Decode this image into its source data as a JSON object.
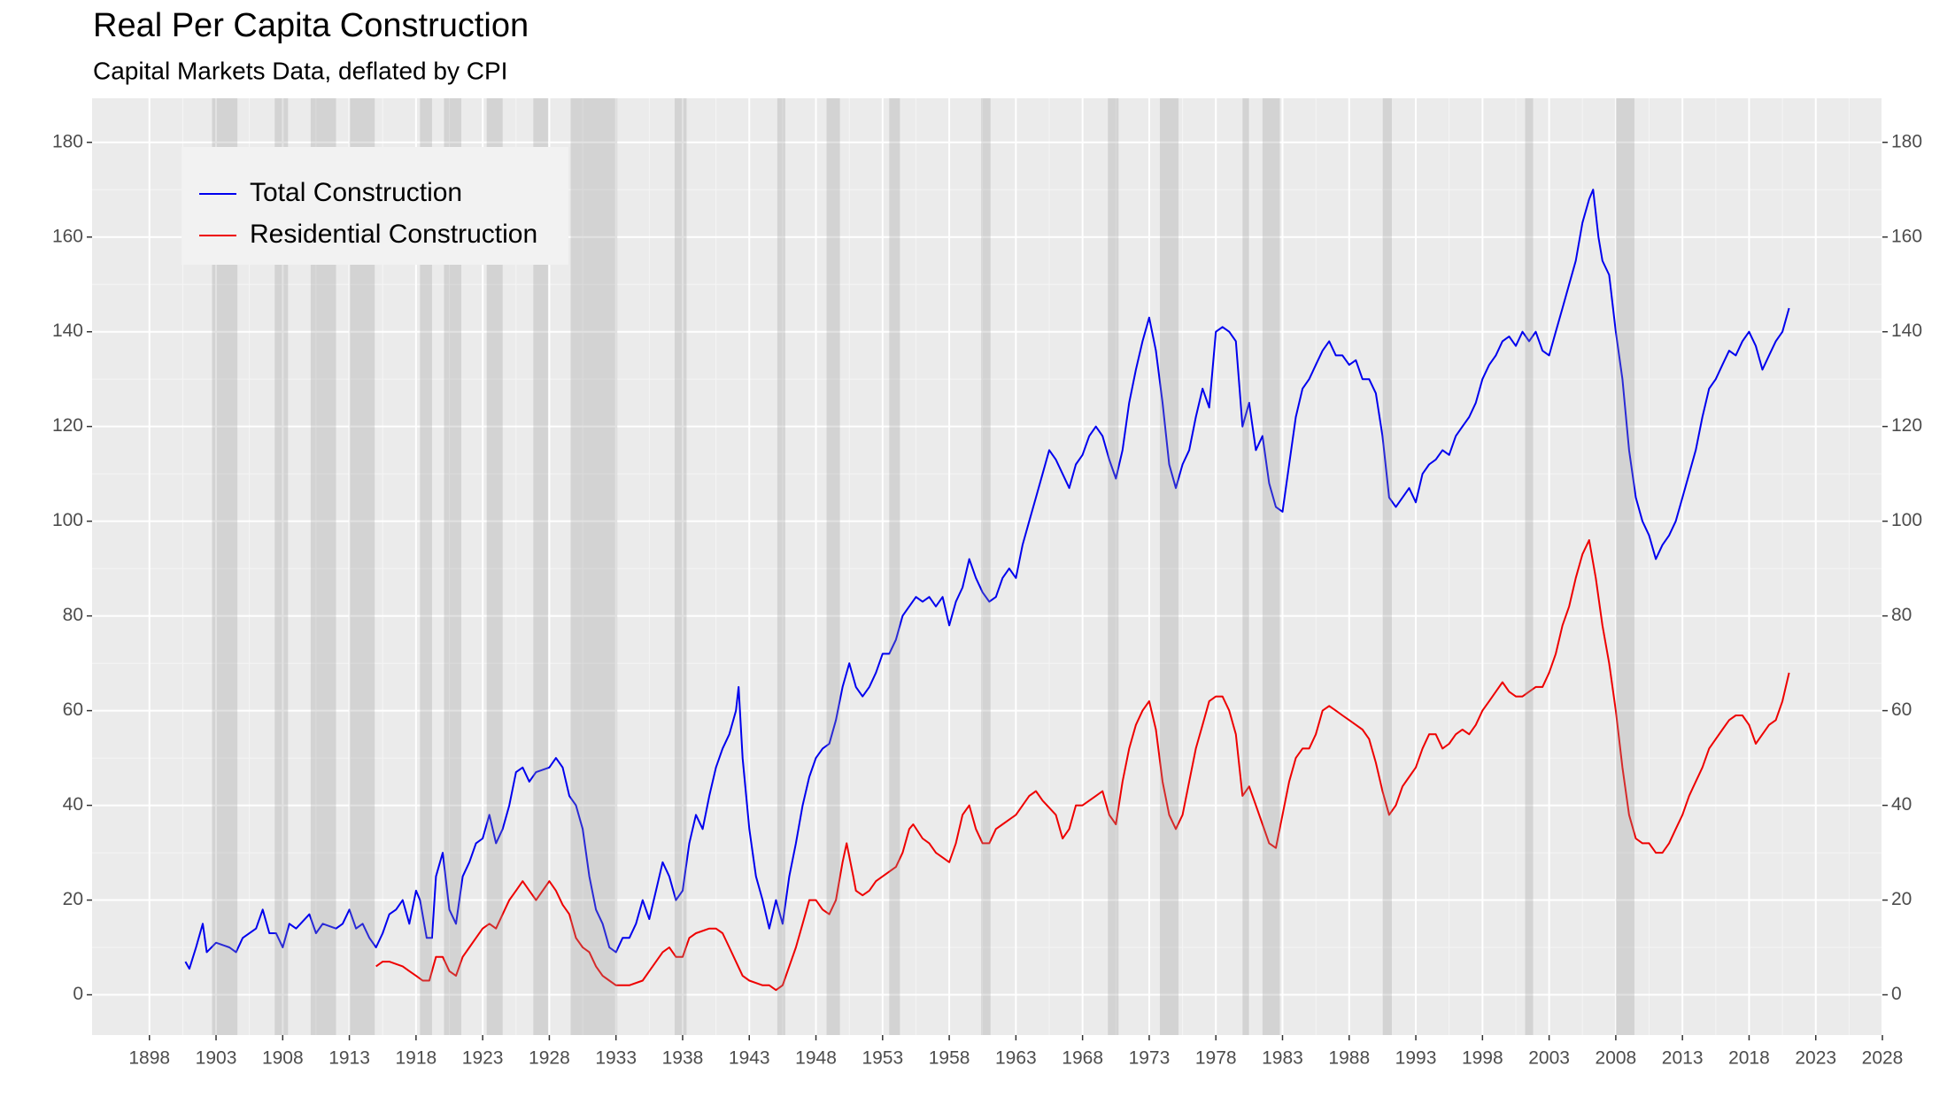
{
  "chart_data": {
    "type": "line",
    "title": "Real Per Capita Construction",
    "subtitle": "Capital Markets Data, deflated by CPI",
    "xlim": [
      1893.7,
      2028
    ],
    "xticks": [
      1898,
      1903,
      1908,
      1913,
      1918,
      1923,
      1928,
      1933,
      1938,
      1943,
      1948,
      1953,
      1958,
      1963,
      1968,
      1973,
      1978,
      1983,
      1988,
      1993,
      1998,
      2003,
      2008,
      2013,
      2018,
      2023,
      2028
    ],
    "ylim": [
      -8.5,
      189.3
    ],
    "yticks": [
      0,
      20,
      40,
      60,
      80,
      100,
      120,
      140,
      160,
      180
    ],
    "y2lim": [
      -8.5,
      189.3
    ],
    "y2ticks": [
      0,
      20,
      40,
      60,
      80,
      100,
      120,
      140,
      160,
      180
    ],
    "grid": true,
    "legend": "top-left",
    "recessions": [
      [
        1902.7,
        1904.6
      ],
      [
        1907.4,
        1908.4
      ],
      [
        1910.1,
        1912.0
      ],
      [
        1913.0,
        1914.9
      ],
      [
        1918.3,
        1919.2
      ],
      [
        1920.1,
        1921.4
      ],
      [
        1923.3,
        1924.5
      ],
      [
        1926.8,
        1927.9
      ],
      [
        1929.6,
        1933.1
      ],
      [
        1937.4,
        1938.3
      ],
      [
        1945.1,
        1945.7
      ],
      [
        1948.8,
        1949.8
      ],
      [
        1953.5,
        1954.3
      ],
      [
        1960.4,
        1961.1
      ],
      [
        1969.9,
        1970.7
      ],
      [
        1973.8,
        1975.2
      ],
      [
        1980.0,
        1980.5
      ],
      [
        1981.5,
        1982.8
      ],
      [
        1990.5,
        1991.2
      ],
      [
        2001.2,
        2001.8
      ],
      [
        2008.0,
        2009.4
      ]
    ],
    "series": [
      {
        "name": "Total Construction",
        "color": "#0000ee",
        "x": [
          1900.7,
          1901,
          1901.5,
          1902,
          1902.3,
          1903,
          1904,
          1904.5,
          1905,
          1906,
          1906.5,
          1907,
          1907.5,
          1908,
          1908.5,
          1909,
          1910,
          1910.5,
          1911,
          1912,
          1912.5,
          1913,
          1913.5,
          1914,
          1914.5,
          1915,
          1915.5,
          1916,
          1916.5,
          1917,
          1917.5,
          1918,
          1918.3,
          1918.8,
          1919.2,
          1919.5,
          1920,
          1920.5,
          1921,
          1921.5,
          1922,
          1922.5,
          1923,
          1923.5,
          1924,
          1924.5,
          1925,
          1925.5,
          1926,
          1926.5,
          1927,
          1928,
          1928.5,
          1929,
          1929.5,
          1930,
          1930.5,
          1931,
          1931.5,
          1932,
          1932.5,
          1933,
          1933.5,
          1934,
          1934.5,
          1935,
          1935.5,
          1936,
          1936.5,
          1937,
          1937.5,
          1938,
          1938.5,
          1939,
          1939.5,
          1940,
          1940.5,
          1941,
          1941.5,
          1942,
          1942.2,
          1942.5,
          1943,
          1943.5,
          1944,
          1944.5,
          1945,
          1945.5,
          1946,
          1946.5,
          1947,
          1947.5,
          1948,
          1948.5,
          1949,
          1949.5,
          1950,
          1950.5,
          1951,
          1951.5,
          1952,
          1952.5,
          1953,
          1953.5,
          1954,
          1954.5,
          1955,
          1955.5,
          1956,
          1956.5,
          1957,
          1957.5,
          1958,
          1958.5,
          1959,
          1959.5,
          1960,
          1960.5,
          1961,
          1961.5,
          1962,
          1962.5,
          1963,
          1963.5,
          1964,
          1964.5,
          1965,
          1965.5,
          1966,
          1966.5,
          1967,
          1967.5,
          1968,
          1968.5,
          1969,
          1969.5,
          1970,
          1970.5,
          1971,
          1971.5,
          1972,
          1972.5,
          1973,
          1973.5,
          1974,
          1974.5,
          1975,
          1975.5,
          1976,
          1976.5,
          1977,
          1977.5,
          1978,
          1978.5,
          1979,
          1979.5,
          1980,
          1980.5,
          1981,
          1981.5,
          1982,
          1982.5,
          1983,
          1983.5,
          1984,
          1984.5,
          1985,
          1985.5,
          1986,
          1986.5,
          1987,
          1987.5,
          1988,
          1988.5,
          1989,
          1989.5,
          1990,
          1990.5,
          1991,
          1991.5,
          1992,
          1992.5,
          1993,
          1993.5,
          1994,
          1994.5,
          1995,
          1995.5,
          1996,
          1996.5,
          1997,
          1997.5,
          1998,
          1998.5,
          1999,
          1999.5,
          2000,
          2000.5,
          2001,
          2001.5,
          2002,
          2002.5,
          2003,
          2003.5,
          2004,
          2004.5,
          2005,
          2005.5,
          2006,
          2006.3,
          2006.7,
          2007,
          2007.5,
          2008,
          2008.5,
          2009,
          2009.5,
          2010,
          2010.5,
          2011,
          2011.5,
          2012,
          2012.5,
          2013,
          2013.5,
          2014,
          2014.5,
          2015,
          2015.5,
          2016,
          2016.5,
          2017,
          2017.5,
          2018,
          2018.5,
          2019,
          2019.5,
          2020,
          2020.5,
          2021
        ],
        "values": [
          7,
          5.5,
          10,
          15,
          9,
          11,
          10,
          9,
          12,
          14,
          18,
          13,
          13,
          10,
          15,
          14,
          17,
          13,
          15,
          14,
          15,
          18,
          14,
          15,
          12,
          10,
          13,
          17,
          18,
          20,
          15,
          22,
          20,
          12,
          12,
          25,
          30,
          18,
          15,
          25,
          28,
          32,
          33,
          38,
          32,
          35,
          40,
          47,
          48,
          45,
          47,
          48,
          50,
          48,
          42,
          40,
          35,
          25,
          18,
          15,
          10,
          9,
          12,
          12,
          15,
          20,
          16,
          22,
          28,
          25,
          20,
          22,
          32,
          38,
          35,
          42,
          48,
          52,
          55,
          60,
          65,
          50,
          35,
          25,
          20,
          14,
          20,
          15,
          25,
          32,
          40,
          46,
          50,
          52,
          53,
          58,
          65,
          70,
          65,
          63,
          65,
          68,
          72,
          72,
          75,
          80,
          82,
          84,
          83,
          84,
          82,
          84,
          78,
          83,
          86,
          92,
          88,
          85,
          83,
          84,
          88,
          90,
          88,
          95,
          100,
          105,
          110,
          115,
          113,
          110,
          107,
          112,
          114,
          118,
          120,
          118,
          113,
          109,
          115,
          125,
          132,
          138,
          143,
          136,
          125,
          112,
          107,
          112,
          115,
          122,
          128,
          124,
          140,
          141,
          140,
          138,
          120,
          125,
          115,
          118,
          108,
          103,
          102,
          112,
          122,
          128,
          130,
          133,
          136,
          138,
          135,
          135,
          133,
          134,
          130,
          130,
          127,
          118,
          105,
          103,
          105,
          107,
          104,
          110,
          112,
          113,
          115,
          114,
          118,
          120,
          122,
          125,
          130,
          133,
          135,
          138,
          139,
          137,
          140,
          138,
          140,
          136,
          135,
          140,
          145,
          150,
          155,
          163,
          168,
          170,
          160,
          155,
          152,
          140,
          130,
          115,
          105,
          100,
          97,
          92,
          95,
          97,
          100,
          105,
          110,
          115,
          122,
          128,
          130,
          133,
          136,
          135,
          138,
          140,
          137,
          132,
          135,
          138,
          140,
          145
        ]
      },
      {
        "name": "Residential Construction",
        "color": "#ee0000",
        "x": [
          1915,
          1915.5,
          1916,
          1917,
          1917.5,
          1918,
          1918.5,
          1919,
          1919.5,
          1920,
          1920.5,
          1921,
          1921.5,
          1922,
          1922.5,
          1923,
          1923.5,
          1924,
          1924.5,
          1925,
          1925.5,
          1926,
          1926.5,
          1927,
          1927.5,
          1928,
          1928.5,
          1929,
          1929.5,
          1930,
          1930.5,
          1931,
          1931.5,
          1932,
          1932.5,
          1933,
          1933.5,
          1934,
          1935,
          1935.5,
          1936,
          1936.5,
          1937,
          1937.5,
          1938,
          1938.5,
          1939,
          1940,
          1940.5,
          1941,
          1941.5,
          1942,
          1942.5,
          1943,
          1944,
          1944.5,
          1945,
          1945.5,
          1946,
          1946.5,
          1947,
          1947.5,
          1948,
          1948.5,
          1949,
          1949.5,
          1950,
          1950.3,
          1950.8,
          1951,
          1951.5,
          1952,
          1952.5,
          1953,
          1954,
          1954.5,
          1955,
          1955.3,
          1956,
          1956.5,
          1957,
          1957.5,
          1958,
          1958.5,
          1959,
          1959.5,
          1960,
          1960.5,
          1961,
          1961.5,
          1962,
          1963,
          1964,
          1964.5,
          1965,
          1966,
          1966.5,
          1967,
          1967.5,
          1968,
          1969,
          1969.5,
          1970,
          1970.5,
          1971,
          1971.5,
          1972,
          1972.5,
          1973,
          1973.5,
          1974,
          1974.5,
          1975,
          1975.5,
          1976,
          1976.5,
          1977,
          1977.5,
          1978,
          1978.5,
          1979,
          1979.5,
          1980,
          1980.5,
          1981,
          1981.5,
          1982,
          1982.5,
          1983,
          1983.5,
          1984,
          1984.5,
          1985,
          1985.5,
          1986,
          1986.5,
          1987,
          1987.5,
          1988,
          1989,
          1989.5,
          1990,
          1990.5,
          1991,
          1991.5,
          1992,
          1992.5,
          1993,
          1993.5,
          1994,
          1994.5,
          1995,
          1995.5,
          1996,
          1996.5,
          1997,
          1997.5,
          1998,
          1998.5,
          1999,
          1999.5,
          2000,
          2000.5,
          2001,
          2001.5,
          2002,
          2002.5,
          2003,
          2003.5,
          2004,
          2004.5,
          2005,
          2005.5,
          2006,
          2006.5,
          2007,
          2007.5,
          2008,
          2008.5,
          2009,
          2009.5,
          2010,
          2010.5,
          2011,
          2011.5,
          2012,
          2012.5,
          2013,
          2013.5,
          2014,
          2014.5,
          2015,
          2015.5,
          2016,
          2016.5,
          2017,
          2017.5,
          2018,
          2018.5,
          2019,
          2019.5,
          2020,
          2020.5,
          2021
        ],
        "values": [
          6,
          7,
          7,
          6,
          5,
          4,
          3,
          3,
          8,
          8,
          5,
          4,
          8,
          10,
          12,
          14,
          15,
          14,
          17,
          20,
          22,
          24,
          22,
          20,
          22,
          24,
          22,
          19,
          17,
          12,
          10,
          9,
          6,
          4,
          3,
          2,
          2,
          2,
          3,
          5,
          7,
          9,
          10,
          8,
          8,
          12,
          13,
          14,
          14,
          13,
          10,
          7,
          4,
          3,
          2,
          2,
          1,
          2,
          6,
          10,
          15,
          20,
          20,
          18,
          17,
          20,
          28,
          32,
          25,
          22,
          21,
          22,
          24,
          25,
          27,
          30,
          35,
          36,
          33,
          32,
          30,
          29,
          28,
          32,
          38,
          40,
          35,
          32,
          32,
          35,
          36,
          38,
          42,
          43,
          41,
          38,
          33,
          35,
          40,
          40,
          42,
          43,
          38,
          36,
          45,
          52,
          57,
          60,
          62,
          56,
          45,
          38,
          35,
          38,
          45,
          52,
          57,
          62,
          63,
          63,
          60,
          55,
          42,
          44,
          40,
          36,
          32,
          31,
          38,
          45,
          50,
          52,
          52,
          55,
          60,
          61,
          60,
          59,
          58,
          56,
          54,
          49,
          43,
          38,
          40,
          44,
          46,
          48,
          52,
          55,
          55,
          52,
          53,
          55,
          56,
          55,
          57,
          60,
          62,
          64,
          66,
          64,
          63,
          63,
          64,
          65,
          65,
          68,
          72,
          78,
          82,
          88,
          93,
          96,
          88,
          78,
          70,
          60,
          48,
          38,
          33,
          32,
          32,
          30,
          30,
          32,
          35,
          38,
          42,
          45,
          48,
          52,
          54,
          56,
          58,
          59,
          59,
          57,
          53,
          55,
          57,
          58,
          62,
          68
        ]
      }
    ]
  }
}
